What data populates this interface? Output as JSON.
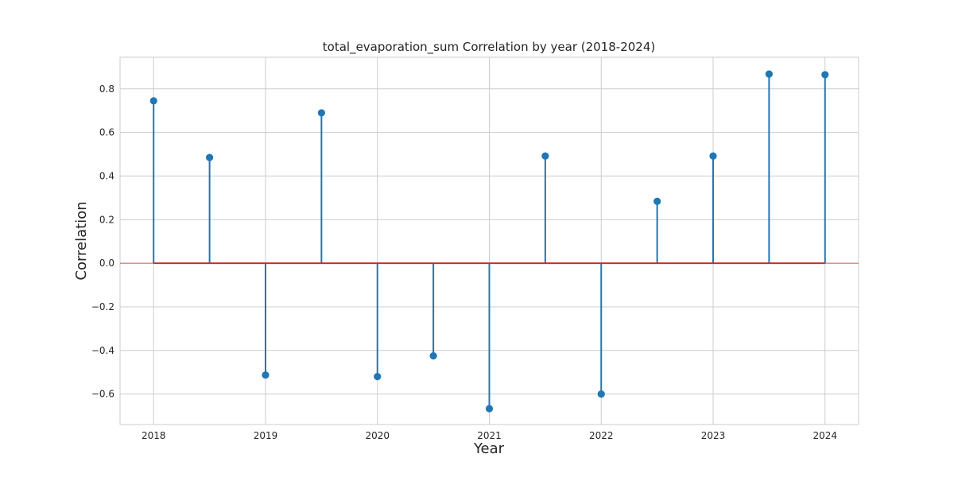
{
  "chart_data": {
    "type": "stem",
    "title": "total_evaporation_sum Correlation by year (2018-2024)",
    "xlabel": "Year",
    "ylabel": "Correlation",
    "xlim": [
      2017.7,
      2024.3
    ],
    "ylim": [
      -0.74,
      0.945
    ],
    "x_ticks": [
      2018,
      2019,
      2020,
      2021,
      2022,
      2023,
      2024
    ],
    "x_tick_labels": [
      "2018",
      "2019",
      "2020",
      "2021",
      "2022",
      "2023",
      "2024"
    ],
    "y_ticks": [
      -0.6,
      -0.4,
      -0.2,
      0.0,
      0.2,
      0.4,
      0.6,
      0.8
    ],
    "y_tick_labels": [
      "−0.6",
      "−0.4",
      "−0.2",
      "0.0",
      "0.2",
      "0.4",
      "0.6",
      "0.8"
    ],
    "grid": true,
    "baseline": 0,
    "points": [
      {
        "x": 2018.0,
        "y": 0.745
      },
      {
        "x": 2018.5,
        "y": 0.485
      },
      {
        "x": 2019.0,
        "y": -0.513
      },
      {
        "x": 2019.5,
        "y": 0.69
      },
      {
        "x": 2020.0,
        "y": -0.52
      },
      {
        "x": 2020.5,
        "y": -0.425
      },
      {
        "x": 2021.0,
        "y": -0.667
      },
      {
        "x": 2021.5,
        "y": 0.492
      },
      {
        "x": 2022.0,
        "y": -0.6
      },
      {
        "x": 2022.5,
        "y": 0.284
      },
      {
        "x": 2023.0,
        "y": 0.492
      },
      {
        "x": 2023.5,
        "y": 0.868
      },
      {
        "x": 2024.0,
        "y": 0.865
      }
    ],
    "colors": {
      "stem": "#1f77b4",
      "marker": "#1f77b4",
      "baseline": "#d62728",
      "grid": "#cccccc",
      "frame": "#cccccc"
    }
  }
}
